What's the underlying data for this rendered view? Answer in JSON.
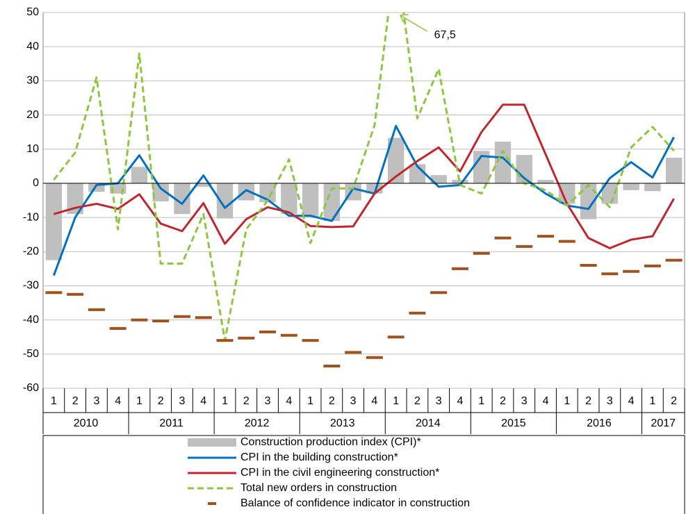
{
  "chart_data": {
    "type": "combo",
    "categories": [
      {
        "quarter": "1",
        "year": "2010"
      },
      {
        "quarter": "2",
        "year": "2010"
      },
      {
        "quarter": "3",
        "year": "2010"
      },
      {
        "quarter": "4",
        "year": "2010"
      },
      {
        "quarter": "1",
        "year": "2011"
      },
      {
        "quarter": "2",
        "year": "2011"
      },
      {
        "quarter": "3",
        "year": "2011"
      },
      {
        "quarter": "4",
        "year": "2011"
      },
      {
        "quarter": "1",
        "year": "2012"
      },
      {
        "quarter": "2",
        "year": "2012"
      },
      {
        "quarter": "3",
        "year": "2012"
      },
      {
        "quarter": "4",
        "year": "2012"
      },
      {
        "quarter": "1",
        "year": "2013"
      },
      {
        "quarter": "2",
        "year": "2013"
      },
      {
        "quarter": "3",
        "year": "2013"
      },
      {
        "quarter": "4",
        "year": "2013"
      },
      {
        "quarter": "1",
        "year": "2014"
      },
      {
        "quarter": "2",
        "year": "2014"
      },
      {
        "quarter": "3",
        "year": "2014"
      },
      {
        "quarter": "4",
        "year": "2014"
      },
      {
        "quarter": "1",
        "year": "2015"
      },
      {
        "quarter": "2",
        "year": "2015"
      },
      {
        "quarter": "3",
        "year": "2015"
      },
      {
        "quarter": "4",
        "year": "2015"
      },
      {
        "quarter": "1",
        "year": "2016"
      },
      {
        "quarter": "2",
        "year": "2016"
      },
      {
        "quarter": "3",
        "year": "2016"
      },
      {
        "quarter": "4",
        "year": "2016"
      },
      {
        "quarter": "1",
        "year": "2017"
      },
      {
        "quarter": "2",
        "year": "2017"
      }
    ],
    "series": [
      {
        "name": "Construction production index (CPI)*",
        "style": "bar",
        "color": "#bfbfbf",
        "values": [
          -22.5,
          -9,
          -2.5,
          -3,
          4.8,
          -5.3,
          -9,
          -1,
          -10.3,
          -5,
          -5.5,
          -9,
          -9.5,
          -11,
          -5,
          -3,
          13.3,
          5.6,
          2.4,
          1,
          9.5,
          12.2,
          8.3,
          1,
          -6,
          -10.5,
          -6,
          -2,
          -2.3,
          7.5
        ]
      },
      {
        "name": "CPI in the building construction*",
        "style": "line",
        "color": "#0070c0",
        "values": [
          -27,
          -10,
          -0.5,
          0,
          8.2,
          -1.5,
          -6,
          2.3,
          -7.2,
          -2,
          -4.8,
          -9.5,
          -9.5,
          -11,
          -1.5,
          -3,
          16.8,
          5,
          -1,
          -0.5,
          8,
          7.5,
          1.5,
          -3,
          -6.5,
          -7.5,
          1.5,
          6.2,
          1.7,
          13.5
        ]
      },
      {
        "name": "CPI in the civil engineering construction*",
        "style": "line",
        "color": "#c0262d",
        "values": [
          -9,
          -7.2,
          -6,
          -7.5,
          -3.2,
          -11.8,
          -14,
          -5.8,
          -17.7,
          -10.5,
          -7,
          -8.5,
          -12.5,
          -12.8,
          -12.6,
          -3,
          2,
          6.5,
          10.5,
          3.5,
          15,
          23,
          23,
          8.5,
          -6,
          -16,
          -19,
          -16.5,
          -15.5,
          -4.5
        ]
      },
      {
        "name": "Total new orders in construction",
        "style": "dashed",
        "color": "#8dc63f",
        "values": [
          1,
          9,
          31,
          -13.5,
          38,
          -23.5,
          -23.5,
          -9,
          -46,
          -13.5,
          -5,
          7,
          -17.5,
          -1.5,
          -1.5,
          17,
          67.5,
          19,
          33.5,
          -0.5,
          -3,
          9.5,
          0,
          -2,
          -6.5,
          -0.5,
          -7,
          10.5,
          16.5,
          9.5
        ],
        "value_labels": [
          null,
          null,
          null,
          null,
          null,
          null,
          null,
          null,
          null,
          null,
          null,
          null,
          null,
          null,
          null,
          null,
          "67,5",
          null,
          null,
          null,
          null,
          null,
          null,
          null,
          null,
          null,
          null,
          null,
          null,
          null
        ]
      },
      {
        "name": "Balance of confidence indicator in construction",
        "style": "dash-marker",
        "color": "#a0521d",
        "values": [
          -32,
          -32.5,
          -37,
          -42.5,
          -40,
          -40.3,
          -39,
          -39.3,
          -46,
          -45.3,
          -43.5,
          -44.5,
          -46,
          -53.5,
          -49.5,
          -51,
          -45,
          -38,
          -32,
          -25,
          -20.5,
          -16,
          -18.5,
          -15.5,
          -17,
          -24,
          -26.5,
          -25.8,
          -24.2,
          -22.5
        ]
      }
    ],
    "ylim": [
      -60,
      50
    ],
    "yticks": [
      -60,
      -50,
      -40,
      -30,
      -20,
      -10,
      0,
      10,
      20,
      30,
      40,
      50
    ],
    "grid": true
  }
}
